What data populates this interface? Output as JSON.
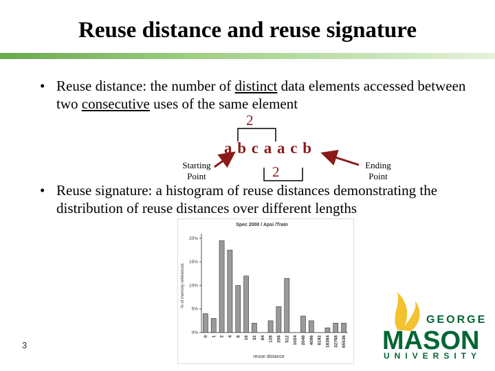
{
  "slide": {
    "title": "Reuse distance and reuse signature",
    "page_number": "3",
    "bullets": [
      {
        "term": "Reuse distance",
        "parts": [
          {
            "text": ": the number of "
          },
          {
            "text": "distinct",
            "underline": true
          },
          {
            "text": " data elements accessed between two "
          },
          {
            "text": "consecutive",
            "underline": true
          },
          {
            "text": " uses of the same element"
          }
        ]
      },
      {
        "term": "Reuse signature",
        "parts": [
          {
            "text": ": a histogram of reuse distances demonstrating the distribution of reuse distances over different lengths"
          }
        ]
      }
    ],
    "diagram": {
      "sequence": "a b c a a c b",
      "start_label": "Starting Point",
      "end_label": "Ending Point",
      "distance_top": "2",
      "distance_bottom": "2"
    },
    "logo": {
      "line1": "GEORGE",
      "line2": "MASON",
      "line3": "UNIVERSITY"
    }
  },
  "chart_data": {
    "type": "bar",
    "title": "Spec 2000 / Apsi /Train",
    "x_label": "reuse distance",
    "y_label": "% of memory references",
    "categories": [
      "0",
      "1",
      "2",
      "4",
      "8",
      "16",
      "32",
      "64",
      "128",
      "256",
      "512",
      "1024",
      "2048",
      "4096",
      "8192",
      "16384",
      "32768",
      "65536"
    ],
    "values": [
      4,
      3,
      19.5,
      17.5,
      10,
      12,
      2,
      0,
      2.5,
      5.5,
      11.5,
      0,
      3.5,
      2.5,
      0,
      1,
      2,
      2
    ],
    "color": "#9a9a9a",
    "ylim": [
      0,
      21
    ],
    "yticks": [
      {
        "value": 0,
        "label": "0%"
      },
      {
        "value": 5,
        "label": "5%"
      },
      {
        "value": 10,
        "label": "10%"
      },
      {
        "value": 15,
        "label": "15%"
      },
      {
        "value": 20,
        "label": "20%"
      }
    ],
    "grid": false
  }
}
